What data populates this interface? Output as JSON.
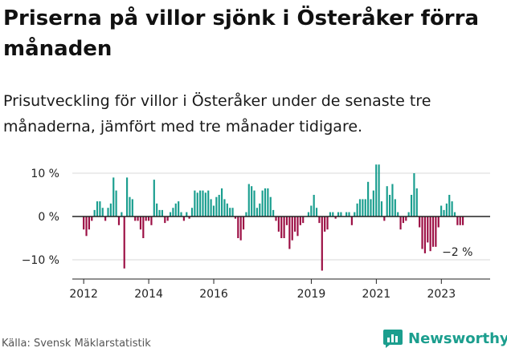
{
  "header": {
    "title": "Priserna på villor sjönk i Österåker förra månaden",
    "subtitle": "Prisutveckling för villor i Österåker under de senaste tre månaderna, jämfört med tre månader tidigare."
  },
  "footer": {
    "source": "Källa: Svensk Mäklarstatistik",
    "brand": "Newsworthy"
  },
  "colors": {
    "positive": "#1a9e8f",
    "negative": "#9c0f44",
    "axis": "#222222",
    "grid": "#d9d9d9"
  },
  "chart_data": {
    "type": "bar",
    "title": "Priserna på villor sjönk i Österåker förra månaden",
    "xlabel": "",
    "ylabel": "",
    "ylim": [
      -14,
      13
    ],
    "x_range": [
      2011.65,
      2024.5
    ],
    "yticks": [
      {
        "value": 10,
        "label": "10 %"
      },
      {
        "value": 0,
        "label": "0 %"
      },
      {
        "value": -10,
        "label": "−10 %"
      }
    ],
    "xticks": [
      {
        "value": 2012,
        "label": "2012"
      },
      {
        "value": 2014,
        "label": "2014"
      },
      {
        "value": 2016,
        "label": "2016"
      },
      {
        "value": 2019,
        "label": "2019"
      },
      {
        "value": 2021,
        "label": "2021"
      },
      {
        "value": 2023,
        "label": "2023"
      }
    ],
    "annotation": {
      "label": "−2 %",
      "value": -2
    },
    "start": 2012.0,
    "step": 0.0833,
    "values": [
      -3,
      -4.5,
      -3,
      -1,
      1.5,
      3.5,
      3.5,
      2,
      -1,
      2,
      3,
      9,
      6,
      -2,
      1,
      -12,
      9,
      4.5,
      4,
      -1,
      -1,
      -3,
      -5,
      -1,
      -1,
      -2,
      8.5,
      3,
      1.5,
      1.5,
      -1.5,
      -1,
      1,
      2,
      3,
      3.5,
      1,
      -1,
      1,
      -0.5,
      2,
      6,
      5.5,
      6,
      6,
      5.5,
      6,
      4,
      2.5,
      4.5,
      5,
      6.5,
      4,
      3,
      2,
      2,
      -0.5,
      -5,
      -5.5,
      -3,
      1,
      7.5,
      7,
      6,
      2,
      3,
      6,
      6.5,
      6.5,
      4.5,
      1.5,
      -1,
      -3.5,
      -5,
      -5,
      -2,
      -7.5,
      -5.5,
      -3.5,
      -4.5,
      -2,
      -1.5,
      0,
      1,
      2.5,
      5,
      2,
      -1.5,
      -12.5,
      -3.5,
      -3,
      1,
      1,
      -0.5,
      1,
      1,
      0,
      1,
      1,
      -2,
      1,
      3,
      4,
      4,
      4,
      8,
      4,
      6,
      12,
      12,
      3.5,
      -1,
      7,
      5,
      7.5,
      4,
      1,
      -3,
      -1.5,
      -1,
      1,
      5,
      10,
      6.5,
      -2.5,
      -7.5,
      -8.5,
      -6,
      -8,
      -7,
      -7,
      -2.5,
      2.5,
      1.5,
      3,
      5,
      3.5,
      1,
      -2,
      -2,
      -2
    ]
  }
}
